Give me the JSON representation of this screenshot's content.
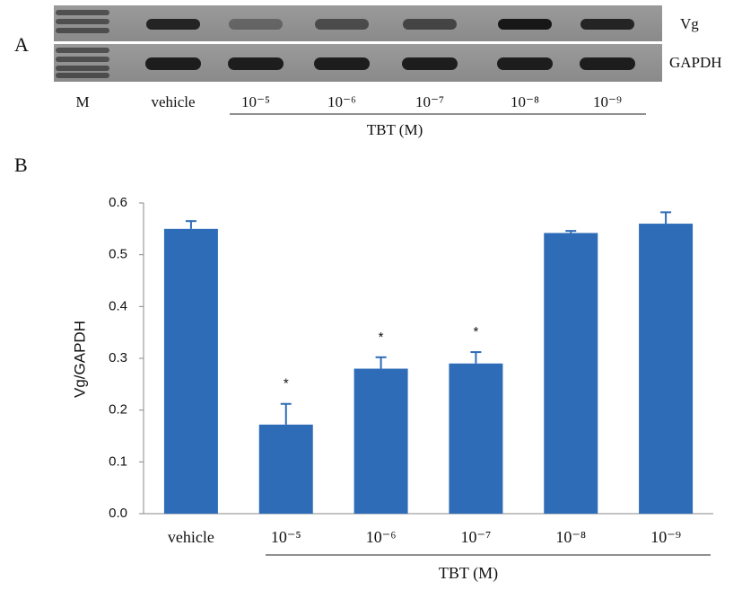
{
  "gel": {
    "panel_label": "A",
    "rows": [
      "Vg",
      "GAPDH"
    ],
    "lanes": [
      "M",
      "vehicle",
      "10⁻⁵",
      "10⁻⁶",
      "10⁻⁷",
      "10⁻⁸",
      "10⁻⁹"
    ],
    "group_label": "TBT (M)"
  },
  "chart_data": {
    "type": "bar",
    "panel_label": "B",
    "ylabel": "Vg/GAPDH",
    "group_label": "TBT (M)",
    "categories": [
      "vehicle",
      "10⁻⁵",
      "10⁻⁶",
      "10⁻⁷",
      "10⁻⁸",
      "10⁻⁹"
    ],
    "values": [
      0.55,
      0.172,
      0.28,
      0.29,
      0.542,
      0.56
    ],
    "errors": [
      0.015,
      0.04,
      0.022,
      0.022,
      0.004,
      0.022
    ],
    "significance": [
      null,
      "*",
      "*",
      "*",
      null,
      null
    ],
    "color": "#2e6cb7",
    "ylim": [
      0,
      0.6
    ],
    "yticks": [
      {
        "value": 0,
        "label": "0.0"
      },
      0.1,
      0.2,
      0.3,
      0.4,
      0.5,
      0.6
    ]
  }
}
